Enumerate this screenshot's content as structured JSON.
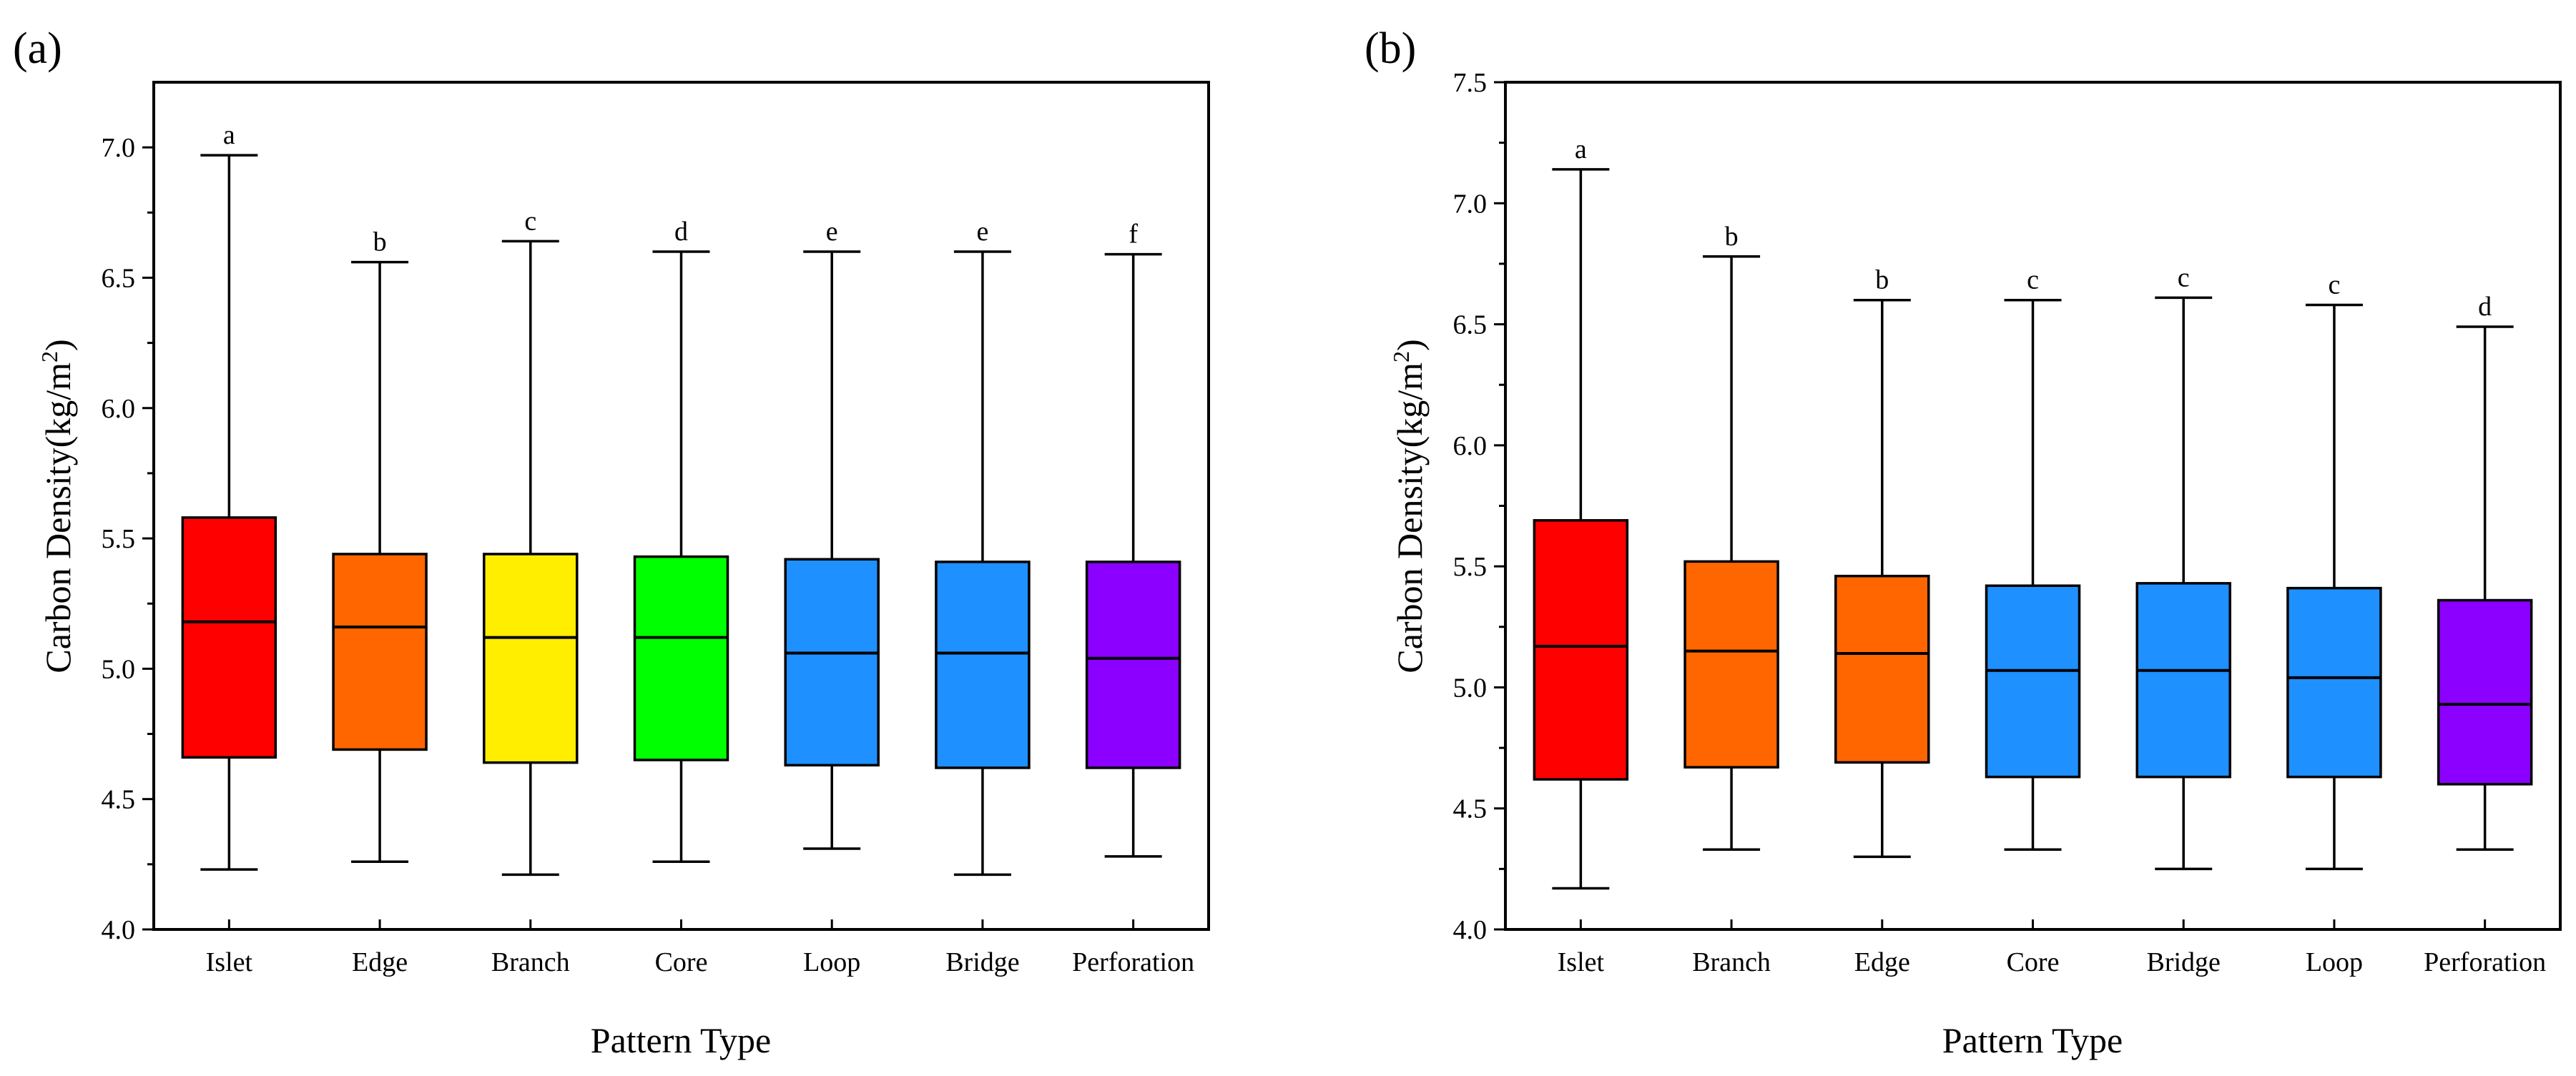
{
  "chart_data": [
    {
      "type": "boxplot",
      "panel_label": "(a)",
      "xlabel": "Pattern Type",
      "ylabel_main": "Carbon Density(kg/m",
      "ylabel_sup": "2",
      "ylabel_close": ")",
      "ylim": [
        4.0,
        7.25
      ],
      "yticks": [
        "4.0",
        "4.5",
        "5.0",
        "5.5",
        "6.0",
        "6.5",
        "7.0"
      ],
      "categories": [
        "Islet",
        "Edge",
        "Branch",
        "Core",
        "Loop",
        "Bridge",
        "Perforation"
      ],
      "boxes": [
        {
          "label": "Islet",
          "whisker_low": 4.23,
          "q1": 4.66,
          "median": 5.18,
          "q3": 5.58,
          "whisker_high": 6.97,
          "letter": "a",
          "color": "#ff0000"
        },
        {
          "label": "Edge",
          "whisker_low": 4.26,
          "q1": 4.69,
          "median": 5.16,
          "q3": 5.44,
          "whisker_high": 6.56,
          "letter": "b",
          "color": "#ff6600"
        },
        {
          "label": "Branch",
          "whisker_low": 4.21,
          "q1": 4.64,
          "median": 5.12,
          "q3": 5.44,
          "whisker_high": 6.64,
          "letter": "c",
          "color": "#ffee00"
        },
        {
          "label": "Core",
          "whisker_low": 4.26,
          "q1": 4.65,
          "median": 5.12,
          "q3": 5.43,
          "whisker_high": 6.6,
          "letter": "d",
          "color": "#00ff00"
        },
        {
          "label": "Loop",
          "whisker_low": 4.31,
          "q1": 4.63,
          "median": 5.06,
          "q3": 5.42,
          "whisker_high": 6.6,
          "letter": "e",
          "color": "#1e90ff"
        },
        {
          "label": "Bridge",
          "whisker_low": 4.21,
          "q1": 4.62,
          "median": 5.06,
          "q3": 5.41,
          "whisker_high": 6.6,
          "letter": "e",
          "color": "#1e90ff"
        },
        {
          "label": "Perforation",
          "whisker_low": 4.28,
          "q1": 4.62,
          "median": 5.04,
          "q3": 5.41,
          "whisker_high": 6.59,
          "letter": "f",
          "color": "#8b00ff"
        }
      ]
    },
    {
      "type": "boxplot",
      "panel_label": "(b)",
      "xlabel": "Pattern Type",
      "ylabel_main": "Carbon Density(kg/m",
      "ylabel_sup": "2",
      "ylabel_close": ")",
      "ylim": [
        4.0,
        7.5
      ],
      "yticks": [
        "4.0",
        "4.5",
        "5.0",
        "5.5",
        "6.0",
        "6.5",
        "7.0",
        "7.5"
      ],
      "categories": [
        "Islet",
        "Branch",
        "Edge",
        "Core",
        "Bridge",
        "Loop",
        "Perforation"
      ],
      "boxes": [
        {
          "label": "Islet",
          "whisker_low": 4.17,
          "q1": 4.62,
          "median": 5.17,
          "q3": 5.69,
          "whisker_high": 7.14,
          "letter": "a",
          "color": "#ff0000"
        },
        {
          "label": "Branch",
          "whisker_low": 4.33,
          "q1": 4.67,
          "median": 5.15,
          "q3": 5.52,
          "whisker_high": 6.78,
          "letter": "b",
          "color": "#ff6600"
        },
        {
          "label": "Edge",
          "whisker_low": 4.3,
          "q1": 4.69,
          "median": 5.14,
          "q3": 5.46,
          "whisker_high": 6.6,
          "letter": "b",
          "color": "#ff6600"
        },
        {
          "label": "Core",
          "whisker_low": 4.33,
          "q1": 4.63,
          "median": 5.07,
          "q3": 5.42,
          "whisker_high": 6.6,
          "letter": "c",
          "color": "#1e90ff"
        },
        {
          "label": "Bridge",
          "whisker_low": 4.25,
          "q1": 4.63,
          "median": 5.07,
          "q3": 5.43,
          "whisker_high": 6.61,
          "letter": "c",
          "color": "#1e90ff"
        },
        {
          "label": "Loop",
          "whisker_low": 4.25,
          "q1": 4.63,
          "median": 5.04,
          "q3": 5.41,
          "whisker_high": 6.58,
          "letter": "c",
          "color": "#1e90ff"
        },
        {
          "label": "Perforation",
          "whisker_low": 4.33,
          "q1": 4.6,
          "median": 4.93,
          "q3": 5.36,
          "whisker_high": 6.49,
          "letter": "d",
          "color": "#8b00ff"
        }
      ]
    }
  ]
}
